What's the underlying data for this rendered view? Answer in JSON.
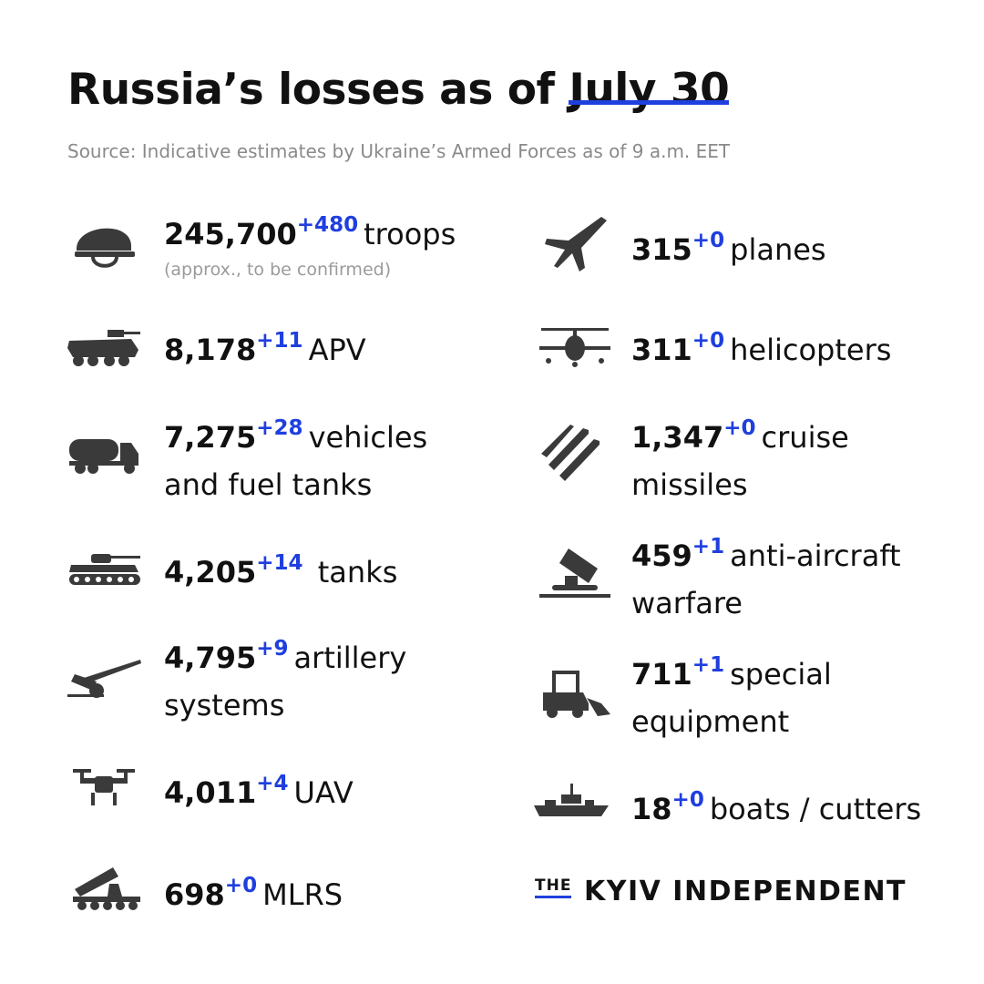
{
  "header": {
    "title_main": "Russia’s losses as of",
    "title_date": "July 30",
    "source": "Source: Indicative estimates by Ukraine’s Armed Forces as of 9 a.m. EET"
  },
  "stats": {
    "troops": {
      "icon": "helmet-icon",
      "value": "245,700",
      "delta": "+480",
      "label": "troops",
      "note": "(approx., to be confirmed)"
    },
    "apv": {
      "icon": "apv-icon",
      "value": "8,178",
      "delta": "+11",
      "label": "APV"
    },
    "vehicles": {
      "icon": "fuel-truck-icon",
      "value": "7,275",
      "delta": "+28",
      "label": "vehicles",
      "label2": "and fuel tanks"
    },
    "tanks": {
      "icon": "tank-icon",
      "value": "4,205",
      "delta": "+14",
      "label": "tanks"
    },
    "artillery": {
      "icon": "artillery-icon",
      "value": "4,795",
      "delta": "+9",
      "label": "artillery",
      "label2": "systems"
    },
    "uav": {
      "icon": "drone-icon",
      "value": "4,011",
      "delta": "+4",
      "label": "UAV"
    },
    "mlrs": {
      "icon": "mlrs-icon",
      "value": "698",
      "delta": "+0",
      "label": "MLRS"
    },
    "planes": {
      "icon": "jet-icon",
      "value": "315",
      "delta": "+0",
      "label": "planes"
    },
    "helicopters": {
      "icon": "helicopter-icon",
      "value": "311",
      "delta": "+0",
      "label": "helicopters"
    },
    "cruise_missiles": {
      "icon": "missiles-icon",
      "value": "1,347",
      "delta": "+0",
      "label": "cruise",
      "label2": "missiles"
    },
    "anti_aircraft": {
      "icon": "anti-aircraft-icon",
      "value": "459",
      "delta": "+1",
      "label": "anti-aircraft",
      "label2": "warfare"
    },
    "special_equipment": {
      "icon": "loader-icon",
      "value": "711",
      "delta": "+1",
      "label": "special",
      "label2": "equipment"
    },
    "boats": {
      "icon": "warship-icon",
      "value": "18",
      "delta": "+0",
      "label": "boats / cutters"
    }
  },
  "brand": {
    "the": "THE",
    "name": "KYIV INDEPENDENT"
  },
  "colors": {
    "accent": "#1f3fde",
    "icon": "#3a3a3a",
    "text": "#111111",
    "muted": "#8a8a8a"
  }
}
